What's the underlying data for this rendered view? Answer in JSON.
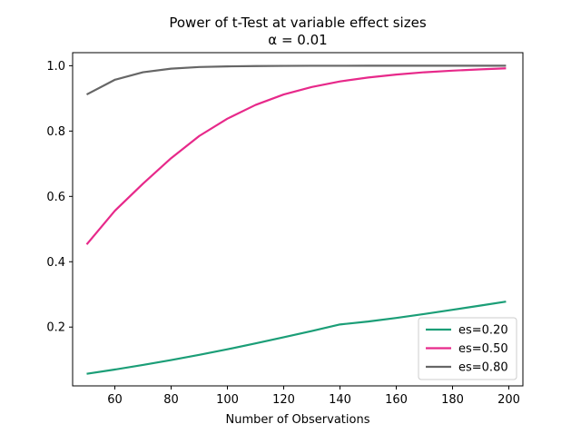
{
  "chart_data": {
    "type": "line",
    "title": "Power of t-Test at variable effect sizes",
    "subtitle": "α = 0.01",
    "xlabel": "Number of Observations",
    "ylabel": "",
    "xlim": [
      45,
      205
    ],
    "ylim": [
      0.02,
      1.04
    ],
    "x_ticks": [
      60,
      80,
      100,
      120,
      140,
      160,
      180,
      200
    ],
    "y_ticks": [
      0.2,
      0.4,
      0.6,
      0.8,
      1.0
    ],
    "x_tick_labels": [
      "60",
      "80",
      "100",
      "120",
      "140",
      "160",
      "180",
      "200"
    ],
    "y_tick_labels": [
      "0.2",
      "0.4",
      "0.6",
      "0.8",
      "1.0"
    ],
    "grid": false,
    "legend_position": "lower-right",
    "x": [
      50,
      60,
      70,
      80,
      90,
      100,
      110,
      120,
      130,
      140,
      150,
      160,
      170,
      180,
      190,
      199
    ],
    "series": [
      {
        "name": "es=0.20",
        "color": "#1b9e77",
        "values": [
          0.057,
          0.07,
          0.084,
          0.099,
          0.115,
          0.132,
          0.15,
          0.169,
          0.188,
          0.208,
          0.217,
          0.228,
          0.24,
          0.253,
          0.266,
          0.278
        ]
      },
      {
        "name": "es=0.50",
        "color": "#e7298a",
        "values": [
          0.453,
          0.556,
          0.639,
          0.717,
          0.785,
          0.838,
          0.88,
          0.912,
          0.935,
          0.952,
          0.964,
          0.973,
          0.98,
          0.985,
          0.989,
          0.992
        ]
      },
      {
        "name": "es=0.80",
        "color": "#666666",
        "values": [
          0.912,
          0.957,
          0.98,
          0.991,
          0.996,
          0.998,
          0.999,
          0.9995,
          0.9998,
          0.9999,
          1.0,
          1.0,
          1.0,
          1.0,
          1.0,
          1.0
        ]
      }
    ]
  }
}
